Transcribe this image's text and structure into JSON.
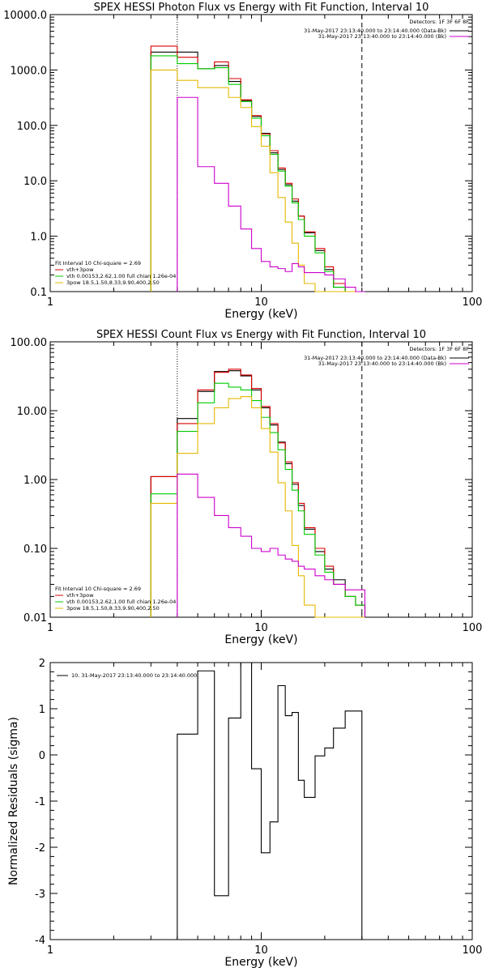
{
  "chart_data": [
    {
      "type": "line",
      "title": "SPEX HESSI Photon Flux vs Energy with Fit Function, Interval 10",
      "xlabel": "Energy (keV)",
      "ylabel": "",
      "x_scale": "log",
      "y_scale": "log",
      "xlim": [
        1,
        100
      ],
      "ylim": [
        0.1,
        10000
      ],
      "x_tick_labels": [
        "1",
        "10",
        "100"
      ],
      "y_tick_labels": [
        "0.1",
        "1.0",
        "10.0",
        "100.0",
        "1000.0",
        "10000.0"
      ],
      "energy_edges": [
        3.0,
        4.0,
        5.0,
        6.0,
        7.0,
        8.0,
        9.0,
        10.0,
        11.0,
        12.0,
        13.0,
        14.0,
        15.0,
        16.0,
        18.0,
        20.0,
        22.0,
        25.0,
        28.0,
        31.0
      ],
      "vlines": [
        {
          "x": 4.0,
          "style": "dotted"
        },
        {
          "x": 30.0,
          "style": "dashed"
        }
      ],
      "legend_top": {
        "position": "top-right",
        "header": "Detectors: 1F 3F 6F 8F",
        "entries": [
          {
            "label": "31-May-2017 23:13:40.000 to 23:14:40.000 (Data-Bk)",
            "color": "#000000"
          },
          {
            "label": "31-May-2017 23:13:40.000 to 23:14:40.000 (Bk)",
            "color": "#cc00cc"
          }
        ]
      },
      "legend_fit": {
        "position": "bottom-left",
        "header": "Fit Interval 10   Chi-square = 2.69",
        "entries": [
          {
            "label": "vth+3pow",
            "color": "#dd0000"
          },
          {
            "label": "vth 0.00153,2.62,1.00  full chian 1.26e-04",
            "color": "#00cc00"
          },
          {
            "label": "3pow 18.5,1.50,8.33,9.90,400,2.50",
            "color": "#e6b800"
          }
        ]
      },
      "series": [
        {
          "color": "#000000",
          "values": [
            2100,
            2100,
            1050,
            1200,
            620,
            280,
            145,
            72,
            32,
            16,
            8.5,
            4.3,
            2.3,
            1.15,
            0.55,
            0.25,
            0.12,
            0.1,
            0.1
          ]
        },
        {
          "color": "#dd0000",
          "values": [
            2700,
            1700,
            1050,
            1400,
            700,
            290,
            150,
            70,
            35,
            17,
            9.0,
            4.7,
            2.3,
            1.2,
            0.6,
            0.28,
            0.14,
            0.1,
            0.1
          ]
        },
        {
          "color": "#00cc00",
          "values": [
            1800,
            1300,
            1050,
            1100,
            550,
            270,
            135,
            65,
            30,
            15,
            8.0,
            4.0,
            2.0,
            1.0,
            0.5,
            0.23,
            0.12,
            0.1,
            0.1
          ]
        },
        {
          "color": "#e6b800",
          "values": [
            1000,
            650,
            480,
            480,
            320,
            210,
            95,
            42,
            14,
            5.0,
            1.8,
            0.75,
            0.3,
            0.14,
            0.1,
            0.1,
            0.1,
            0.1,
            0.1
          ]
        },
        {
          "color": "#cc00cc",
          "values": [
            null,
            320,
            18,
            9.0,
            3.5,
            1.35,
            0.6,
            0.35,
            0.28,
            0.26,
            0.23,
            0.32,
            0.28,
            0.22,
            0.22,
            0.2,
            0.17,
            0.12,
            0.1
          ]
        }
      ]
    },
    {
      "type": "line",
      "title": "SPEX HESSI Count Flux vs Energy with Fit Function, Interval 10",
      "xlabel": "Energy (keV)",
      "ylabel": "",
      "x_scale": "log",
      "y_scale": "log",
      "xlim": [
        1,
        100
      ],
      "ylim": [
        0.01,
        100
      ],
      "x_tick_labels": [
        "1",
        "10",
        "100"
      ],
      "y_tick_labels": [
        "0.01",
        "0.10",
        "1.00",
        "10.00",
        "100.00"
      ],
      "energy_edges": [
        3.0,
        4.0,
        5.0,
        6.0,
        7.0,
        8.0,
        9.0,
        10.0,
        11.0,
        12.0,
        13.0,
        14.0,
        15.0,
        16.0,
        18.0,
        20.0,
        22.0,
        25.0,
        28.0,
        31.0
      ],
      "vlines": [
        {
          "x": 4.0,
          "style": "dotted"
        },
        {
          "x": 30.0,
          "style": "dashed"
        }
      ],
      "legend_top": {
        "position": "top-right",
        "header": "Detectors: 1F 3F 6F 8F",
        "entries": [
          {
            "label": "31-May-2017 23:13:40.000 to 23:14:40.000 (Data-Bk)",
            "color": "#000000"
          },
          {
            "label": "31-May-2017 23:13:40.000 to 23:14:40.000 (Bk)",
            "color": "#cc00cc"
          }
        ]
      },
      "legend_fit": {
        "position": "bottom-left",
        "header": "Fit Interval 10   Chi-square = 2.69",
        "entries": [
          {
            "label": "vth+3pow",
            "color": "#dd0000"
          },
          {
            "label": "vth 0.00153,2.62,1.00  full chian 1.26e-04",
            "color": "#00cc00"
          },
          {
            "label": "3pow 18.5,1.50,8.33,9.90,400,2.50",
            "color": "#e6b800"
          }
        ]
      },
      "series": [
        {
          "color": "#000000",
          "values": [
            1.1,
            7.7,
            19,
            37,
            38,
            32,
            20,
            11,
            6.2,
            3.5,
            1.7,
            0.85,
            0.42,
            0.19,
            0.09,
            0.05,
            0.035,
            0.02,
            0.015
          ]
        },
        {
          "color": "#dd0000",
          "values": [
            1.1,
            6.5,
            20,
            36,
            40,
            33,
            21,
            11.5,
            6.5,
            3.4,
            1.8,
            0.9,
            0.45,
            0.2,
            0.1,
            0.055,
            0.03,
            0.02,
            0.015
          ]
        },
        {
          "color": "#00cc00",
          "values": [
            0.62,
            5.0,
            13,
            25,
            22,
            20,
            14,
            8.0,
            4.8,
            2.7,
            1.4,
            0.7,
            0.35,
            0.16,
            0.08,
            0.045,
            0.03,
            0.02,
            0.015
          ]
        },
        {
          "color": "#e6b800",
          "values": [
            0.45,
            2.4,
            6.5,
            11,
            15,
            16,
            11,
            5.5,
            2.5,
            0.9,
            0.35,
            0.11,
            0.04,
            0.015,
            0.01,
            0.01,
            0.01,
            0.01,
            0.01
          ]
        },
        {
          "color": "#cc00cc",
          "values": [
            null,
            1.2,
            0.55,
            0.3,
            0.2,
            0.15,
            0.1,
            0.09,
            0.1,
            0.08,
            0.07,
            0.065,
            0.055,
            0.05,
            0.04,
            0.035,
            0.03,
            0.025,
            0.025
          ]
        }
      ]
    },
    {
      "type": "line",
      "title": "",
      "xlabel": "Energy (keV)",
      "ylabel": "Normalized Residuals (sigma)",
      "x_scale": "log",
      "y_scale": "linear",
      "xlim": [
        1,
        100
      ],
      "ylim": [
        -4,
        2
      ],
      "x_tick_labels": [
        "1",
        "10",
        "100"
      ],
      "y_tick_labels": [
        "-4",
        "-3",
        "-2",
        "-1",
        "0",
        "1",
        "2"
      ],
      "legend": {
        "position": "top-left",
        "entries": [
          {
            "label": "10. 31-May-2017 23:13:40.000 to 23:14:40.000",
            "color": "#000000"
          }
        ]
      },
      "energy_edges": [
        4.0,
        5.0,
        6.0,
        7.0,
        8.0,
        9.0,
        10.0,
        11.0,
        12.0,
        13.0,
        14.0,
        15.0,
        16.0,
        18.0,
        20.0,
        22.0,
        25.0,
        28.0,
        30.0
      ],
      "series": [
        {
          "color": "#000000",
          "values": [
            0.45,
            1.82,
            -3.05,
            0.8,
            2.05,
            -0.3,
            -2.12,
            -1.45,
            1.5,
            0.85,
            0.92,
            -0.55,
            -0.92,
            -0.02,
            0.15,
            0.58,
            0.95,
            0.95
          ]
        }
      ]
    }
  ]
}
